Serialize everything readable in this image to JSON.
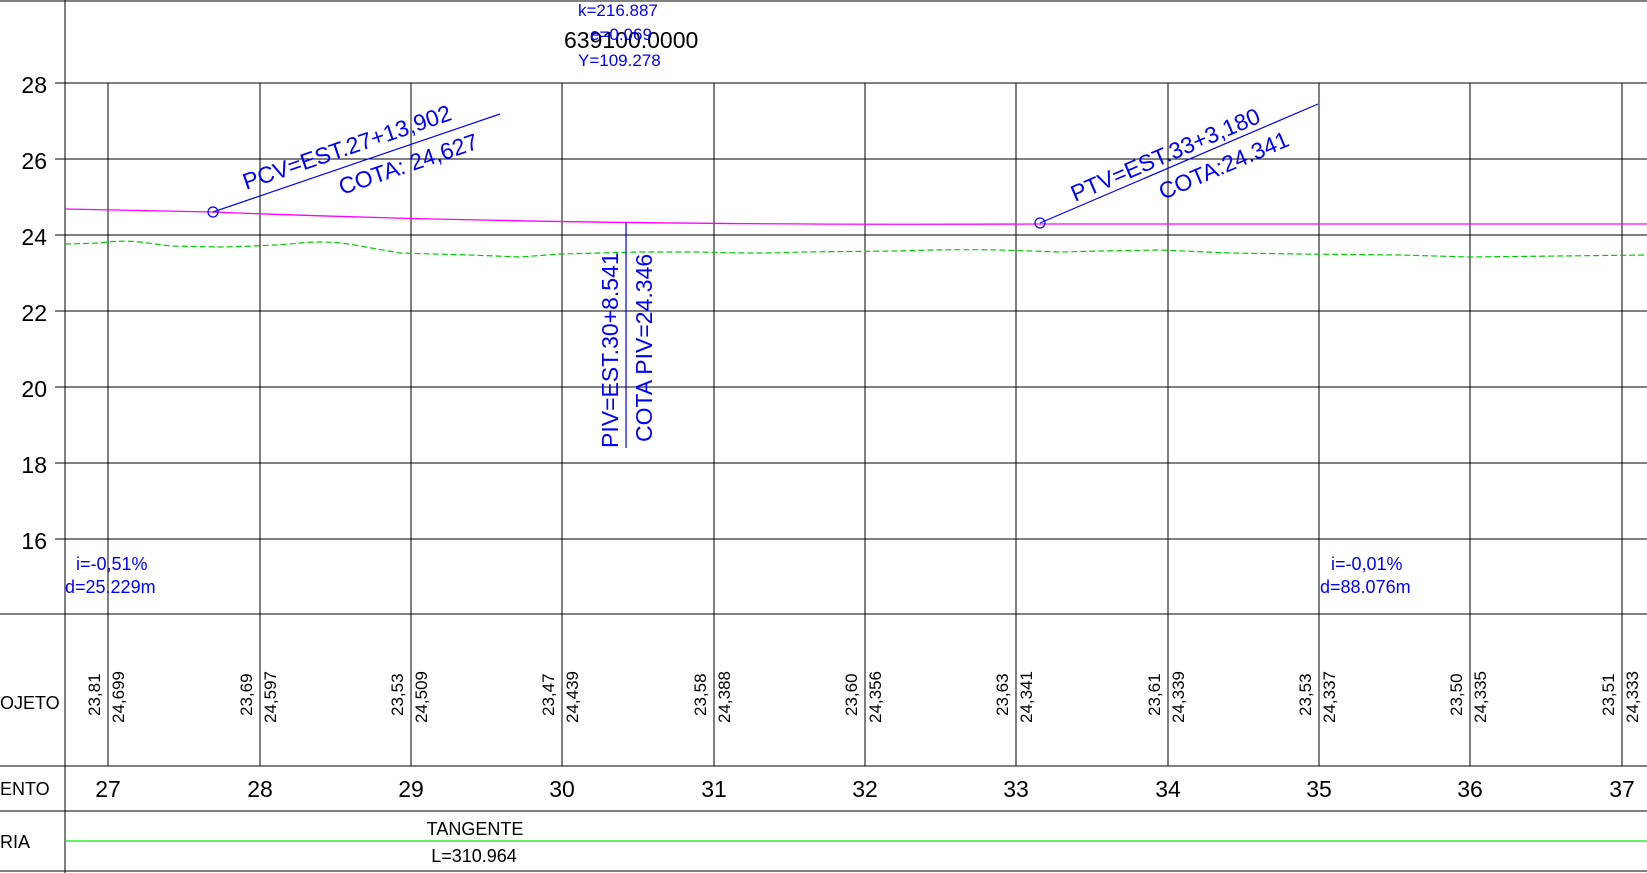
{
  "drawing": {
    "top_label": "639100.0000",
    "curve_params": {
      "k": "k=216.887",
      "e": "e=0.069",
      "y": "Y=109.278"
    },
    "elevation_ticks": [
      "28",
      "26",
      "24",
      "22",
      "20",
      "18",
      "16"
    ],
    "pcv": {
      "station": "PCV=EST.27+13,902",
      "elevation": "COTA: 24,627"
    },
    "ptv": {
      "station": "PTV=EST.33+3,180",
      "elevation": "COTA:24.341"
    },
    "piv": {
      "station": "PIV=EST.30+8.541",
      "elevation": "COTA PIV=24.346"
    },
    "grade_left": {
      "slope": "i=-0,51%",
      "distance": "d=25.229m"
    },
    "grade_right": {
      "slope": "i=-0,01%",
      "distance": "d=88.076m"
    }
  },
  "table": {
    "row_labels": {
      "projeto": "OJETO",
      "estaqueamento": "ENTO",
      "geometria": "RIA"
    },
    "stations": [
      "27",
      "28",
      "29",
      "30",
      "31",
      "32",
      "33",
      "34",
      "35",
      "36",
      "37"
    ],
    "terrain_values": [
      "23,81",
      "23,69",
      "23,53",
      "23,47",
      "23,58",
      "23,60",
      "23,63",
      "23,61",
      "23,53",
      "23,50",
      "23,51"
    ],
    "design_values": [
      "24,699",
      "24,597",
      "24,509",
      "24,439",
      "24,388",
      "24,356",
      "24,341",
      "24,339",
      "24,337",
      "24,335",
      "24,333"
    ],
    "geometry": {
      "type": "TANGENTE",
      "length": "L=310.964"
    }
  },
  "colors": {
    "grid": "#000000",
    "annotation": "#0000ff",
    "design_profile": "#ff00ff",
    "terrain_profile": "#00cc00",
    "alignment_line": "#00ee00"
  }
}
